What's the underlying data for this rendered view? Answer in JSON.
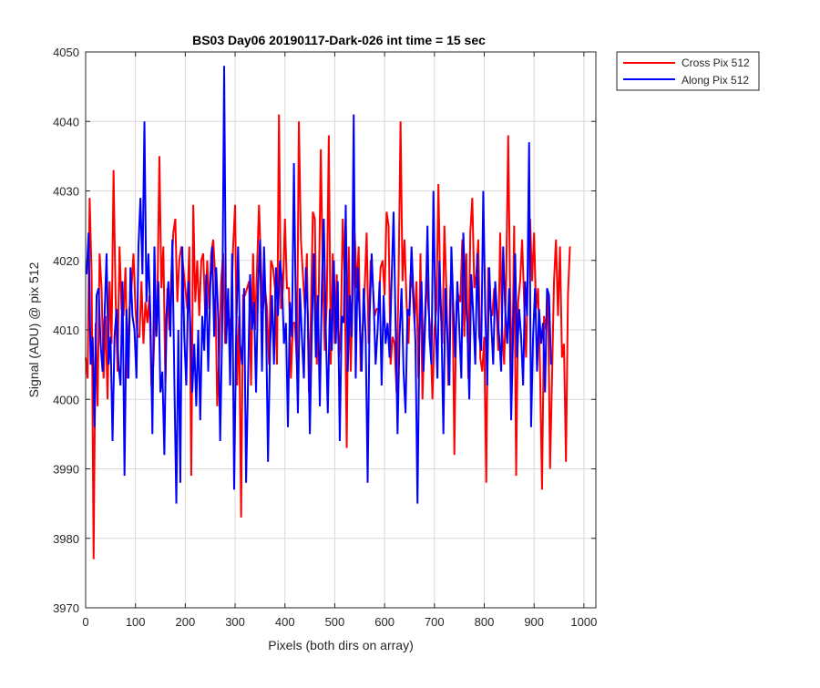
{
  "chart_data": {
    "type": "line",
    "title": "BS03 Day06 20190117-Dark-026 int time = 15 sec",
    "xlabel": "Pixels (both dirs on array)",
    "ylabel": "Signal (ADU) @ pix 512",
    "xlim": [
      0,
      1024
    ],
    "ylim": [
      3970,
      4050
    ],
    "xticks": [
      0,
      100,
      200,
      300,
      400,
      500,
      600,
      700,
      800,
      900,
      1000
    ],
    "yticks": [
      3970,
      3980,
      3990,
      4000,
      4010,
      4020,
      4030,
      4040,
      4050
    ],
    "grid": true,
    "legend_position": "outside top-right",
    "series": [
      {
        "name": "Cross Pix 512",
        "color": "#ff0000",
        "note_values": "values at x = 0, 4, 8, ... 1020 (every 4th pixel, approximated from plot)",
        "x_start": 0,
        "x_step": 4,
        "values": [
          4006,
          4003,
          4029,
          4018,
          3977,
          4011,
          3999,
          4021,
          4016,
          4003,
          4012,
          4000,
          4017,
          4008,
          4033,
          4015,
          4004,
          4022,
          4013,
          4012,
          4019,
          4003,
          4013,
          4016,
          4021,
          4013,
          4009,
          4009,
          4017,
          4008,
          4014,
          4011,
          4015,
          4002,
          4005,
          4014,
          4014,
          4035,
          4016,
          4022,
          4002,
          4016,
          4010,
          4018,
          4024,
          4026,
          4014,
          4020,
          4022,
          4019,
          4016,
          4013,
          4022,
          3989,
          4028,
          4014,
          4020,
          4012,
          4020,
          4021,
          4012,
          4020,
          4013,
          4021,
          4023,
          4018,
          3999,
          4006,
          4017,
          4021,
          4008,
          4013,
          4010,
          4012,
          4022,
          4028,
          4002,
          4012,
          3983,
          4015,
          4015,
          4016,
          4017,
          4002,
          4021,
          4010,
          4019,
          4028,
          4019,
          4013,
          4016,
          4013,
          4005,
          4020,
          4019,
          4016,
          4005,
          4041,
          4013,
          4016,
          4026,
          4016,
          4016,
          4003,
          4011,
          4011,
          4005,
          4040,
          4023,
          4018,
          4013,
          4021,
          4001,
          4012,
          4027,
          4026,
          4005,
          4016,
          4036,
          4018,
          4007,
          4014,
          4038,
          4005,
          4021,
          4008,
          4018,
          4006,
          4010,
          4026,
          4017,
          3993,
          4022,
          4004,
          4015,
          4024,
          4016,
          4022,
          4004,
          4010,
          4016,
          4024,
          4008,
          4020,
          4017,
          4012,
          4013,
          4013,
          4019,
          4020,
          4015,
          4027,
          4025,
          4005,
          4009,
          4008,
          4001,
          4017,
          4040,
          4017,
          4023,
          4014,
          4008,
          4018,
          4016,
          4011,
          4017,
          4003,
          4021,
          4000,
          4010,
          4018,
          4013,
          4010,
          4000,
          4010,
          4013,
          4031,
          4014,
          4008,
          4025,
          4016,
          4002,
          4016,
          4018,
          3992,
          4014,
          4015,
          4014,
          4023,
          4009,
          4021,
          4003,
          4024,
          4029,
          4016,
          4018,
          4023,
          4006,
          4004,
          4009,
          3988,
          4019,
          4013,
          4012,
          4016,
          4014,
          4007,
          4024,
          4010,
          4005,
          4017,
          4038,
          4015,
          4003,
          4025,
          3989,
          4014,
          4017,
          4023,
          4014,
          4006,
          4020,
          4026,
          4017,
          4024,
          4013,
          4016,
          4004,
          3987,
          4012,
          4010,
          4015,
          3990,
          4003,
          4017,
          4023,
          4012,
          4022,
          4006,
          4008,
          3991,
          4015,
          4022
        ]
      },
      {
        "name": "Along Pix 512",
        "color": "#0000ff",
        "note_values": "values at x = 2, 6, 10, ... 1022 (every 4th pixel, approximated from plot)",
        "x_start": 2,
        "x_step": 4,
        "values": [
          4018,
          4024,
          4005,
          4009,
          3996,
          4015,
          4016,
          4008,
          4004,
          4012,
          4021,
          4005,
          4009,
          3994,
          4009,
          4013,
          4005,
          4002,
          4017,
          3989,
          4013,
          4003,
          4019,
          4012,
          4010,
          4003,
          4022,
          4029,
          4018,
          4040,
          4014,
          4021,
          4012,
          3995,
          4022,
          4009,
          4017,
          4001,
          4004,
          3992,
          4012,
          4017,
          4009,
          4023,
          4003,
          3985,
          4010,
          3988,
          4022,
          4009,
          4002,
          4017,
          4011,
          4001,
          4008,
          3999,
          4010,
          3997,
          4012,
          4007,
          4018,
          4004,
          4016,
          4022,
          4009,
          4019,
          4012,
          3994,
          4010,
          4048,
          4008,
          4016,
          4002,
          4021,
          3987,
          4009,
          4022,
          4008,
          4005,
          4016,
          3988,
          4003,
          4018,
          4010,
          4014,
          4001,
          4016,
          4023,
          4004,
          4022,
          4012,
          3991,
          4007,
          4015,
          4005,
          4019,
          4012,
          4020,
          4017,
          4008,
          4011,
          3996,
          4014,
          4009,
          4034,
          4012,
          3998,
          4016,
          4009,
          4003,
          4019,
          4012,
          3995,
          4010,
          4021,
          4006,
          4015,
          3999,
          4016,
          4026,
          4010,
          3998,
          4013,
          4007,
          4020,
          4008,
          4017,
          3994,
          4012,
          4011,
          4028,
          4004,
          4015,
          4009,
          4041,
          4003,
          4019,
          4012,
          4004,
          4016,
          4009,
          3988,
          4012,
          4021,
          4014,
          4005,
          4010,
          4017,
          4002,
          4015,
          4008,
          4011,
          4006,
          4017,
          4027,
          4011,
          3995,
          4009,
          4016,
          4004,
          3998,
          4013,
          4012,
          4022,
          4015,
          4008,
          3985,
          4010,
          4017,
          4004,
          4012,
          4025,
          4009,
          4005,
          4030,
          4012,
          4003,
          4020,
          4011,
          3995,
          4016,
          4009,
          4002,
          4022,
          4013,
          4006,
          4017,
          4010,
          4003,
          4024,
          4015,
          4011,
          4000,
          4018,
          4012,
          4005,
          4021,
          4009,
          4007,
          4030,
          4013,
          4002,
          4019,
          4011,
          4005,
          4017,
          4012,
          4009,
          4004,
          4022,
          4013,
          4008,
          4016,
          3997,
          4010,
          4021,
          4006,
          4013,
          4009,
          4002,
          4017,
          4012,
          4037,
          3996,
          4009,
          4016,
          4004,
          4013,
          4008,
          4011,
          4001,
          4016,
          4015,
          4005
        ]
      }
    ]
  }
}
